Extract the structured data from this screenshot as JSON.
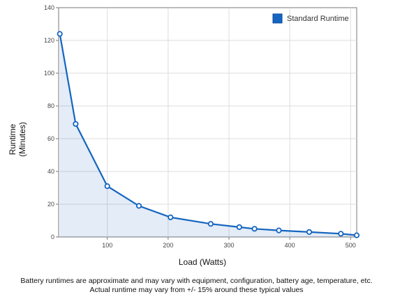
{
  "chart_data": {
    "type": "line",
    "xlabel": "Load (Watts)",
    "ylabel_lines": [
      "Runtime",
      "(Minutes)"
    ],
    "xlim": [
      20,
      510
    ],
    "ylim": [
      0,
      140
    ],
    "x_ticks": [
      100,
      200,
      300,
      400,
      500
    ],
    "y_ticks": [
      0,
      20,
      40,
      60,
      80,
      100,
      120,
      140
    ],
    "grid": true,
    "legend_position": "top-right",
    "series": [
      {
        "name": "Standard Runtime",
        "color": "#1565c0",
        "x": [
          22,
          48,
          100,
          152,
          204,
          270,
          317,
          342,
          382,
          432,
          484,
          510
        ],
        "y": [
          124,
          69,
          31,
          19,
          12,
          8,
          6,
          5,
          4,
          3,
          2,
          1
        ]
      }
    ]
  },
  "footnote": {
    "line1": "Battery runtimes are approximate and may vary with equipment, configuration, battery age, temperature, etc.",
    "line2": "Actual runtime may vary from +/- 15% around these typical values"
  }
}
